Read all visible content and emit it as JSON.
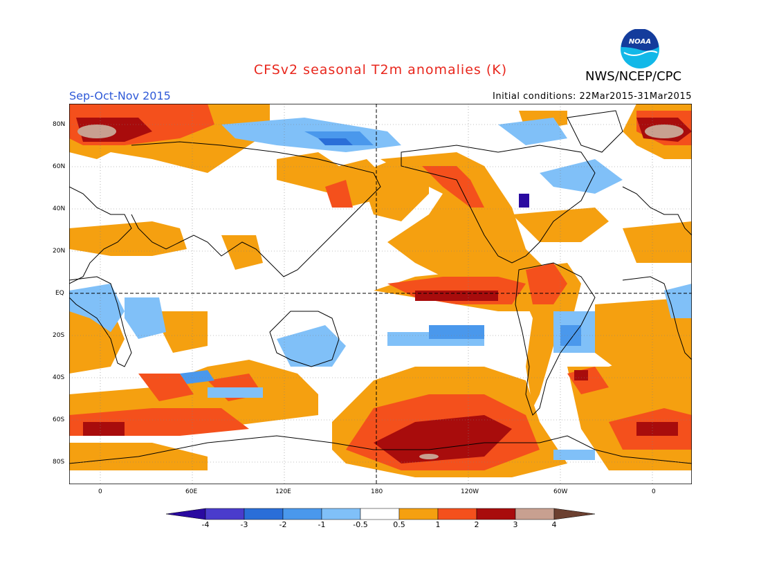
{
  "title": "CFSv2 seasonal T2m anomalies (K)",
  "agency": "NWS/NCEP/CPC",
  "logo_text": "NOAA",
  "period": "Sep-Oct-Nov 2015",
  "initial_conditions": "Initial conditions: 22Mar2015-31Mar2015",
  "lat_labels": [
    "80N",
    "60N",
    "40N",
    "20N",
    "EQ",
    "20S",
    "40S",
    "60S",
    "80S"
  ],
  "lon_labels": [
    "0",
    "60E",
    "120E",
    "180",
    "120W",
    "60W",
    "0"
  ],
  "colorbar": {
    "labels": [
      "-4",
      "-3",
      "-2",
      "-1",
      "-0.5",
      "0.5",
      "1",
      "2",
      "3",
      "4"
    ],
    "colors": [
      "#2a0aa0",
      "#4a3ccc",
      "#2a6ed8",
      "#4a98ec",
      "#80c0f8",
      "#ffffff",
      "#f5a010",
      "#f4501c",
      "#a80c0c",
      "#c8a090",
      "#6c4030"
    ]
  },
  "colors": {
    "ocean": "#ffffff",
    "land_outline": "#000000",
    "warm1": "#f5a010",
    "warm2": "#f4501c",
    "warm3": "#a80c0c",
    "warm4": "#c8a090",
    "cool1": "#80c0f8",
    "cool2": "#4a98ec",
    "cool3": "#2a6ed8",
    "cool4": "#4a3ccc"
  }
}
